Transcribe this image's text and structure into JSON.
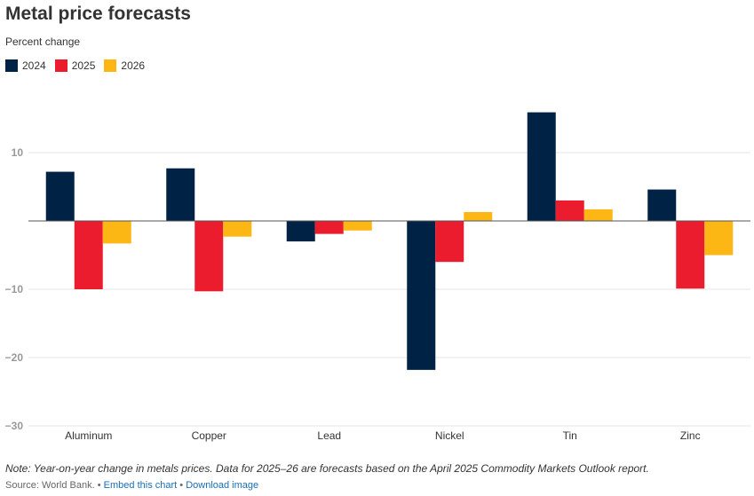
{
  "chart_data": {
    "type": "bar",
    "title": "Metal price forecasts",
    "subtitle": "Percent change",
    "categories": [
      "Aluminum",
      "Copper",
      "Lead",
      "Nickel",
      "Tin",
      "Zinc"
    ],
    "series": [
      {
        "name": "2024",
        "color": "#002244",
        "values": [
          7.2,
          7.7,
          -3.0,
          -21.8,
          15.9,
          4.6
        ]
      },
      {
        "name": "2025",
        "color": "#eb1c2d",
        "values": [
          -10.0,
          -10.3,
          -1.9,
          -6.0,
          3.0,
          -9.9
        ]
      },
      {
        "name": "2026",
        "color": "#fdb714",
        "values": [
          -3.3,
          -2.3,
          -1.4,
          1.3,
          1.7,
          -5.0
        ]
      }
    ],
    "ylim": [
      -30,
      20
    ],
    "yticks": [
      10,
      -10,
      -20,
      -30
    ],
    "grid": true,
    "legend": "top-left"
  },
  "footer": {
    "note": "Note: Year-on-year change in metals prices. Data for 2025–26 are forecasts based on the April 2025 Commodity Markets Outlook report.",
    "source": "Source: World Bank.",
    "separator": "•",
    "embed_label": "Embed this chart",
    "download_label": "Download image"
  }
}
